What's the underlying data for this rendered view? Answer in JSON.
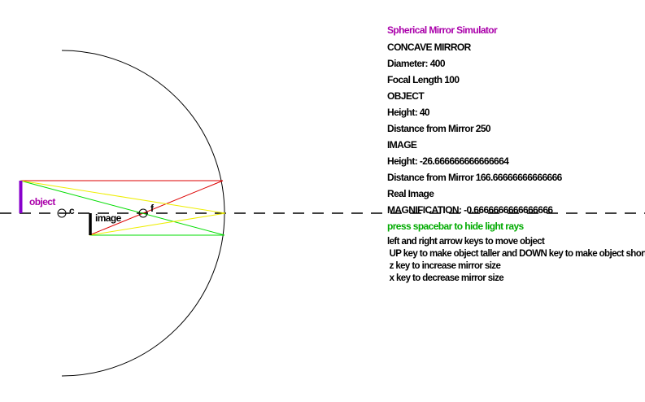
{
  "simulator": {
    "title": "Spherical Mirror Simulator",
    "mirror_type": "CONCAVE MIRROR",
    "diameter": "Diameter: 400",
    "focal_length": "Focal Length 100",
    "object_heading": "OBJECT",
    "object_height": "Height: 40",
    "object_distance": "Distance from Mirror 250",
    "image_heading": "IMAGE",
    "image_height": "Height: -26.666666666666664",
    "image_distance": "Distance from Mirror 166.66666666666666",
    "image_type": "Real Image",
    "magnification": "MAGNIFICATION: -0.6666666666666666",
    "rays_toggle_hint": "press spacebar to hide light rays"
  },
  "instructions": {
    "move": "left and right arrow keys to move object",
    "height": " UP key to make object taller and DOWN key to make object shorter",
    "increase": " z key to increase mirror size",
    "decrease": " x key to decrease mirror size"
  },
  "scene": {
    "object_label": "object",
    "image_label": "image",
    "center_label": "c",
    "focus_label": "f"
  },
  "colors": {
    "title": "#aa00aa",
    "hint": "#00aa00",
    "object": "#8800cc",
    "image": "#000000",
    "ray_red": "#dd0000",
    "ray_yellow": "#eeee00",
    "ray_green": "#00dd00",
    "mirror": "#000000",
    "axis": "#000000"
  }
}
